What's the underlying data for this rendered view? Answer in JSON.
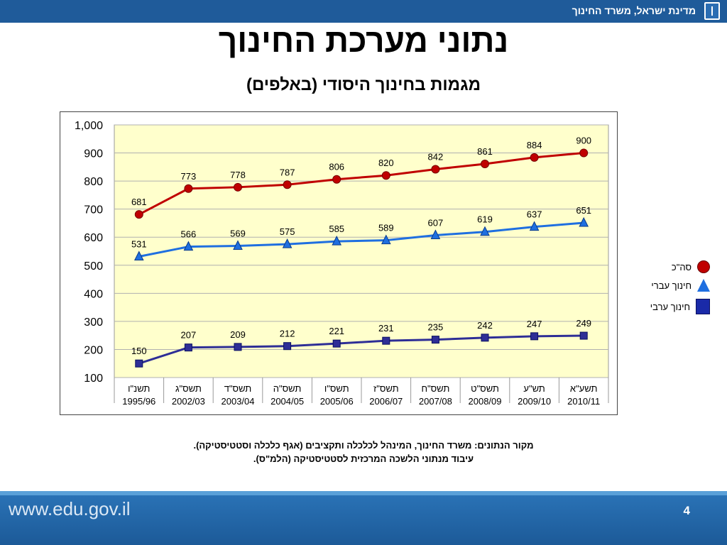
{
  "header": {
    "ministry": "מדינת ישראל, משרד החינוך",
    "emblem_icon": "state-emblem-icon"
  },
  "title": "נתוני מערכת החינוך",
  "subtitle": "מגמות בחינוך היסודי (באלפים)",
  "chart_data": {
    "type": "line",
    "categories": [
      {
        "heb": "תשנ\"ו",
        "years": "1995/96"
      },
      {
        "heb": "תשס\"ג",
        "years": "2002/03"
      },
      {
        "heb": "תשס\"ד",
        "years": "2003/04"
      },
      {
        "heb": "תשס\"ה",
        "years": "2004/05"
      },
      {
        "heb": "תשס\"ו",
        "years": "2005/06"
      },
      {
        "heb": "תשס\"ז",
        "years": "2006/07"
      },
      {
        "heb": "תשס\"ח",
        "years": "2007/08"
      },
      {
        "heb": "תשס\"ט",
        "years": "2008/09"
      },
      {
        "heb": "תש\"ע",
        "years": "2009/10"
      },
      {
        "heb": "תשע\"א",
        "years": "2010/11"
      }
    ],
    "series": [
      {
        "name": "סה\"כ",
        "marker": "circle",
        "color": "#c00000",
        "values": [
          681,
          773,
          778,
          787,
          806,
          820,
          842,
          861,
          884,
          900
        ]
      },
      {
        "name": "חינוך עברי",
        "marker": "triangle",
        "color": "#1f6fe0",
        "values": [
          531,
          566,
          569,
          575,
          585,
          589,
          607,
          619,
          637,
          651
        ]
      },
      {
        "name": "חינוך ערבי",
        "marker": "square",
        "color": "#2e2e96",
        "values": [
          150,
          207,
          209,
          212,
          221,
          231,
          235,
          242,
          247,
          249
        ]
      }
    ],
    "yticks": [
      "100",
      "200",
      "300",
      "400",
      "500",
      "600",
      "700",
      "800",
      "900",
      "1,000"
    ],
    "ylim": [
      100,
      1000
    ],
    "plot_background": "#ffffcc",
    "grid": true,
    "legend_position": "right"
  },
  "source": {
    "line1": "מקור הנתונים:  משרד החינוך, המינהל לכלכלה ותקציבים (אגף כלכלה וסטטיסטיקה).",
    "line2": "עיבוד מנתוני הלשכה המרכזית לסטטיסטיקה (הלמ\"ס)."
  },
  "footer": {
    "url": "www.edu.gov.il",
    "page_number": "4"
  }
}
